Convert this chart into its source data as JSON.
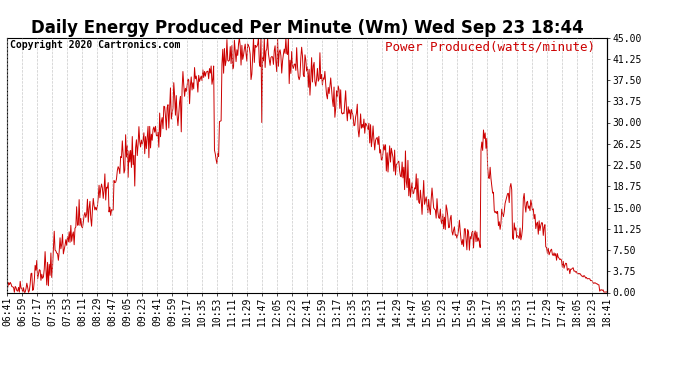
{
  "title": "Daily Energy Produced Per Minute (Wm) Wed Sep 23 18:44",
  "legend_label": "Power Produced(watts/minute)",
  "copyright_text": "Copyright 2020 Cartronics.com",
  "line_color": "#cc0000",
  "background_color": "#ffffff",
  "grid_color": "#bbbbbb",
  "ylabel_right_values": [
    0.0,
    3.75,
    7.5,
    11.25,
    15.0,
    18.75,
    22.5,
    26.25,
    30.0,
    33.75,
    37.5,
    41.25,
    45.0
  ],
  "ylim": [
    0,
    45
  ],
  "x_tick_labels": [
    "06:41",
    "06:59",
    "07:17",
    "07:35",
    "07:53",
    "08:11",
    "08:29",
    "08:47",
    "09:05",
    "09:23",
    "09:41",
    "09:59",
    "10:17",
    "10:35",
    "10:53",
    "11:11",
    "11:29",
    "11:47",
    "12:05",
    "12:23",
    "12:41",
    "12:59",
    "13:17",
    "13:35",
    "13:53",
    "14:11",
    "14:29",
    "14:47",
    "15:05",
    "15:23",
    "15:41",
    "15:59",
    "16:17",
    "16:35",
    "16:53",
    "17:11",
    "17:29",
    "17:47",
    "18:05",
    "18:23",
    "18:41"
  ],
  "title_fontsize": 12,
  "tick_fontsize": 7,
  "copyright_fontsize": 7,
  "legend_fontsize": 9
}
